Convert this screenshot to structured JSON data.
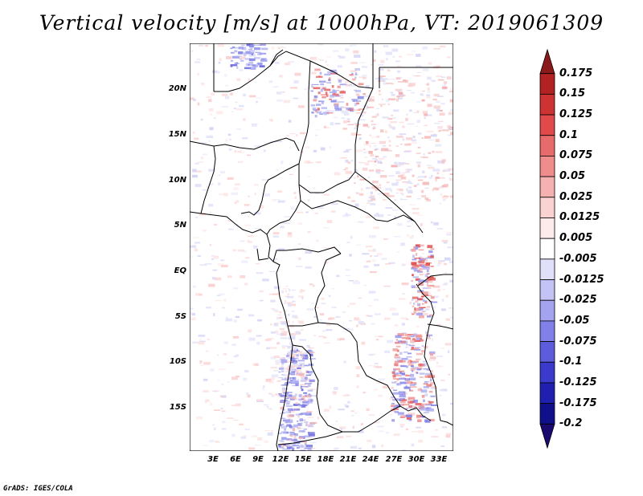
{
  "title": "Vertical velocity [m/s] at 1000hPa, VT: 2019061309",
  "latitude_labels": [
    "20N",
    "15N",
    "10N",
    "5N",
    "EQ",
    "5S",
    "10S",
    "15S"
  ],
  "longitude_labels": [
    "3E",
    "6E",
    "9E",
    "12E",
    "15E",
    "18E",
    "21E",
    "24E",
    "27E",
    "30E",
    "33E"
  ],
  "colorbar": {
    "levels": [
      "0.175",
      "0.15",
      "0.125",
      "0.1",
      "0.075",
      "0.05",
      "0.025",
      "0.0125",
      "0.005",
      "-0.005",
      "-0.0125",
      "-0.025",
      "-0.05",
      "-0.075",
      "-0.1",
      "-0.125",
      "-0.175",
      "-0.2"
    ],
    "colors": [
      "#8b1a1a",
      "#b22222",
      "#cd3333",
      "#e04a4a",
      "#e86b6b",
      "#ef8c8c",
      "#f5b0b0",
      "#fad2d2",
      "#fdeaea",
      "#ffffff",
      "#e0e0fb",
      "#c3c3f6",
      "#a3a3f0",
      "#8080e8",
      "#5c5cdc",
      "#3a3acc",
      "#2020b0",
      "#10108a",
      "#1a0a70"
    ]
  },
  "credit": "GrADS: IGES/COLA"
}
